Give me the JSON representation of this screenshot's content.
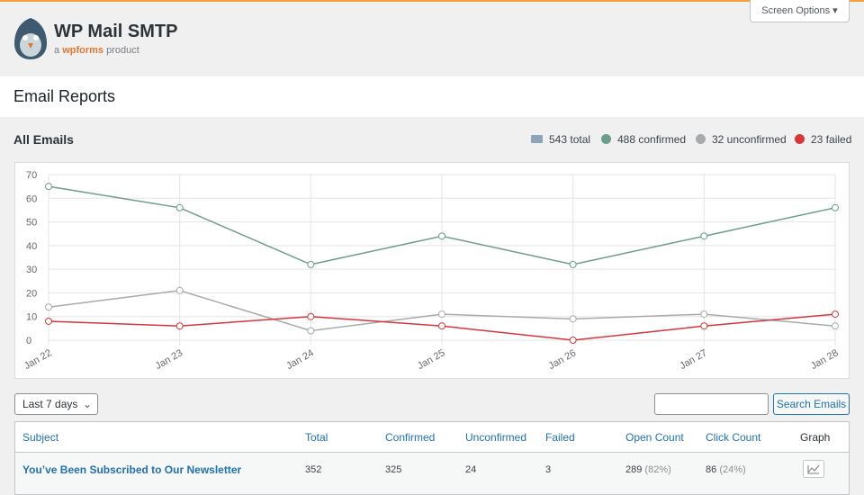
{
  "header": {
    "brand": "WP Mail SMTP",
    "tagline_prefix": "a",
    "tagline_brand": "wpforms",
    "tagline_suffix": "product",
    "screen_options": "Screen Options"
  },
  "page_title": "Email Reports",
  "section_title": "All Emails",
  "stats": [
    {
      "label": "543 total",
      "color": "#8ea4b8"
    },
    {
      "label": "488 confirmed",
      "color": "#6a9e88"
    },
    {
      "label": "32 unconfirmed",
      "color": "#a7aaad"
    },
    {
      "label": "23 failed",
      "color": "#d63638"
    }
  ],
  "chart_data": {
    "type": "line",
    "categories": [
      "Jan 22",
      "Jan 23",
      "Jan 24",
      "Jan 25",
      "Jan 26",
      "Jan 27",
      "Jan 28"
    ],
    "series": [
      {
        "color": "#a7aaad",
        "values": [
          14,
          21,
          4,
          11,
          9,
          11,
          6
        ]
      },
      {
        "color": "#d63638",
        "values": [
          8,
          6,
          10,
          6,
          0,
          6,
          11
        ]
      },
      {
        "color": "#6a9e88",
        "values": [
          65,
          56,
          32,
          44,
          32,
          44,
          56
        ]
      }
    ],
    "ylim": [
      0,
      70
    ],
    "yticks": [
      0,
      10,
      20,
      30,
      40,
      50,
      60,
      70
    ],
    "grid": true
  },
  "filters": {
    "period": "Last 7 days",
    "search_button": "Search Emails"
  },
  "table": {
    "columns": [
      "Subject",
      "Total",
      "Confirmed",
      "Unconfirmed",
      "Failed",
      "Open Count",
      "Click Count",
      "Graph"
    ],
    "rows": [
      {
        "subject": "You’ve Been Subscribed to Our Newsletter",
        "total": 352,
        "confirmed": 325,
        "unconfirmed": 24,
        "failed": 3,
        "open_count": 289,
        "open_percent": "(82%)",
        "click_count": 86,
        "click_percent": "(24%)"
      }
    ]
  }
}
